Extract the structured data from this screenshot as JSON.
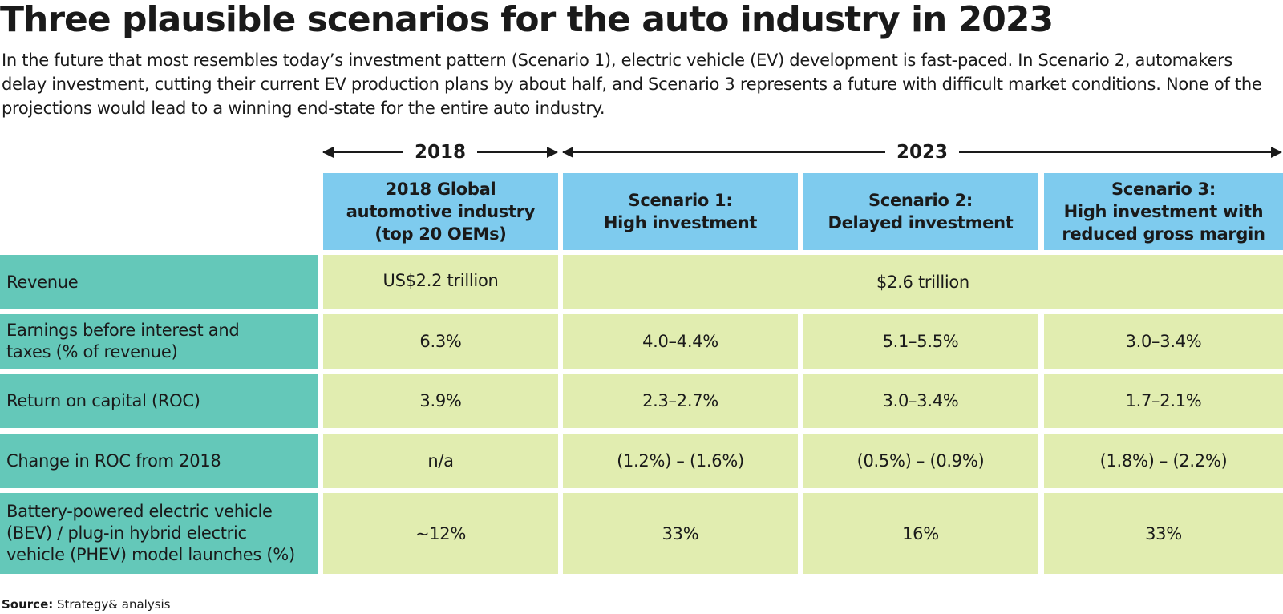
{
  "title": "Three plausible scenarios for the auto industry in 2023",
  "subtitle": "In the future that most resembles today’s investment pattern (Scenario 1), electric vehicle (EV) development is fast-paced. In Scenario 2, automakers delay investment, cutting their current EV production plans by about half, and Scenario 3 represents a future with difficult market conditions. None of the projections would lead to a winning end-state for the entire auto industry.",
  "periods": {
    "year_2018": "2018",
    "year_2023": "2023"
  },
  "columns": {
    "global": "2018 Global\nautomotive industry\n(top 20 OEMs)",
    "scenario1": "Scenario 1:\nHigh investment",
    "scenario2": "Scenario 2:\nDelayed investment",
    "scenario3": "Scenario 3:\nHigh investment with\nreduced gross margin"
  },
  "rows": {
    "revenue": {
      "label": "Revenue",
      "global": "US$2.2 trillion",
      "scenarios_combined": "$2.6 trillion"
    },
    "ebit": {
      "label": "Earnings before interest and\ntaxes (% of revenue)",
      "global": "6.3%",
      "scenario1": "4.0–4.4%",
      "scenario2": "5.1–5.5%",
      "scenario3": "3.0–3.4%"
    },
    "roc": {
      "label": "Return on capital (ROC)",
      "global": "3.9%",
      "scenario1": "2.3–2.7%",
      "scenario2": "3.0–3.4%",
      "scenario3": "1.7–2.1%"
    },
    "roc_change": {
      "label": "Change in ROC from 2018",
      "global": "n/a",
      "scenario1": "(1.2%) – (1.6%)",
      "scenario2": "(0.5%) – (0.9%)",
      "scenario3": "(1.8%) – (2.2%)"
    },
    "bev": {
      "label": "Battery-powered electric vehicle\n(BEV) / plug-in hybrid electric\nvehicle (PHEV) model launches (%)",
      "global": "~12%",
      "scenario1": "33%",
      "scenario2": "16%",
      "scenario3": "33%"
    }
  },
  "source": {
    "label": "Source:",
    "text": "Strategy& analysis"
  },
  "colors": {
    "header_fill": "#7ecbee",
    "row_label_fill": "#64c8b9",
    "cell_fill": "#e1edb0"
  }
}
